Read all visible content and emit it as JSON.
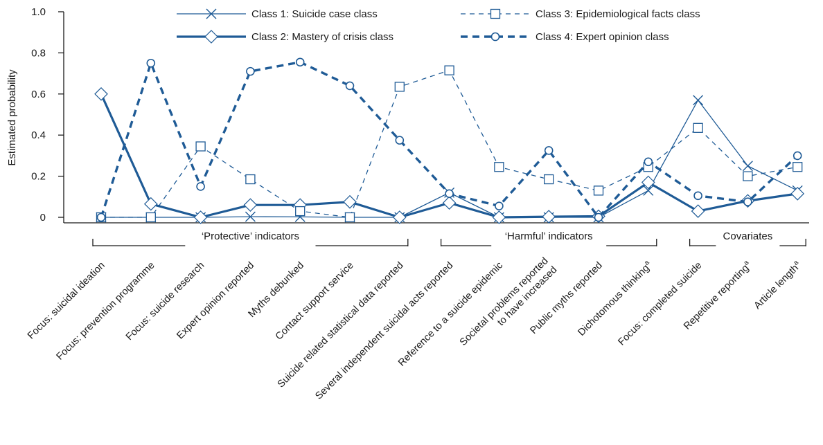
{
  "chart_data": {
    "type": "line",
    "title": "",
    "xlabel": "",
    "ylabel": "Estimated probability",
    "ylim": [
      0,
      1.0
    ],
    "yticks": [
      "0",
      "0.2",
      "0.4",
      "0.6",
      "0.8",
      "1.0"
    ],
    "grid": false,
    "legend_position": "top",
    "categories": [
      "Focus: suicidal ideation",
      "Focus: prevention programme",
      "Focus: suicide research",
      "Expert opinion reported",
      "Myths debunked",
      "Contact support service",
      "Suicide related statistical data reported",
      "Several independent suicidal acts reported",
      "Reference to a suicide epidemic",
      "Societal problems reported to have increased",
      "Public myths reported",
      "Dichotomous thinking",
      "Focus: completed suicide",
      "Repetitive reporting",
      "Article length"
    ],
    "category_superscripts": [
      "",
      "",
      "",
      "",
      "",
      "",
      "",
      "",
      "",
      "",
      "",
      "a",
      "",
      "a",
      "a"
    ],
    "groups": [
      {
        "label": "‘Protective’ indicators",
        "from": 0,
        "to": 6
      },
      {
        "label": "‘Harmful’ indicators",
        "from": 7,
        "to": 11
      },
      {
        "label": "Covariates",
        "from": 12,
        "to": 14
      }
    ],
    "series": [
      {
        "name": "Class 1: Suicide case class",
        "color": "#1f5b96",
        "marker": "x",
        "style": "solid-thin",
        "values": [
          0.0,
          0.0,
          0.0,
          0.003,
          0.002,
          0.0,
          0.0,
          0.12,
          0.0,
          0.0,
          0.0,
          0.13,
          0.57,
          0.25,
          0.13
        ]
      },
      {
        "name": "Class 2: Mastery of crisis class",
        "color": "#1f5b96",
        "marker": "diamond",
        "style": "solid-thick",
        "values": [
          0.6,
          0.065,
          0.0,
          0.06,
          0.06,
          0.075,
          0.0,
          0.07,
          0.0,
          0.003,
          0.005,
          0.17,
          0.03,
          0.08,
          0.115
        ]
      },
      {
        "name": "Class 3: Epidemiological facts class",
        "color": "#1f5b96",
        "marker": "square",
        "style": "dashed-thin",
        "values": [
          0.0,
          0.0,
          0.345,
          0.185,
          0.03,
          0.0,
          0.635,
          0.715,
          0.245,
          0.185,
          0.13,
          0.245,
          0.435,
          0.2,
          0.245
        ]
      },
      {
        "name": "Class 4: Expert opinion class",
        "color": "#1f5b96",
        "marker": "circle",
        "style": "dashed-thick",
        "values": [
          0.0,
          0.75,
          0.15,
          0.71,
          0.755,
          0.64,
          0.375,
          0.115,
          0.055,
          0.325,
          0.0,
          0.27,
          0.105,
          0.075,
          0.3
        ]
      }
    ]
  }
}
